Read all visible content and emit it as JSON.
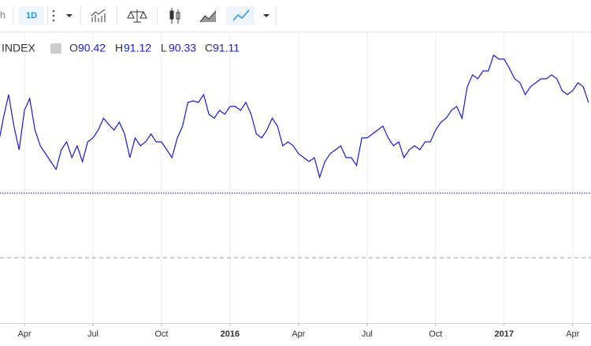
{
  "toolbar": {
    "interval_partial": "h",
    "interval": "1D"
  },
  "legend": {
    "symbol": "INDEX",
    "open_label": "O",
    "open": 90.42,
    "high_label": "H",
    "high": 91.12,
    "low_label": "L",
    "low": 90.33,
    "close_label": "C",
    "close": 91.11
  },
  "chart_data": {
    "type": "line",
    "color": "#1a1ad6",
    "categories": [
      null,
      null,
      null,
      null,
      null,
      "Apr",
      null,
      null,
      null,
      null,
      null,
      null,
      null,
      null,
      null,
      null,
      null,
      null,
      "Jul",
      null,
      null,
      null,
      null,
      null,
      null,
      null,
      null,
      null,
      null,
      null,
      null,
      "Oct",
      null,
      null,
      null,
      null,
      null,
      null,
      null,
      null,
      null,
      null,
      null,
      null,
      "2016",
      null,
      null,
      null,
      null,
      null,
      null,
      null,
      null,
      null,
      null,
      null,
      null,
      "Apr",
      null,
      null,
      null,
      null,
      null,
      null,
      null,
      null,
      null,
      null,
      null,
      null,
      "Jul",
      null,
      null,
      null,
      null,
      null,
      null,
      null,
      null,
      null,
      null,
      null,
      null,
      "Oct",
      null,
      null,
      null,
      null,
      null,
      null,
      null,
      null,
      null,
      null,
      null,
      null,
      "2017",
      null,
      null,
      null,
      null,
      null,
      null,
      null,
      null,
      null,
      null,
      null,
      null,
      "Apr",
      null,
      null,
      null
    ],
    "values": [
      87.81,
      89.91,
      91.71,
      89.31,
      87.51,
      90.51,
      91.41,
      89.01,
      87.81,
      87.21,
      86.61,
      86.01,
      87.51,
      88.11,
      86.91,
      87.81,
      86.61,
      88.11,
      88.41,
      89.01,
      89.91,
      89.43,
      89.01,
      89.61,
      88.71,
      86.91,
      88.41,
      87.81,
      88.11,
      88.71,
      88.11,
      88.11,
      87.51,
      86.91,
      88.41,
      89.31,
      91.11,
      91.23,
      91.11,
      91.71,
      90.21,
      89.91,
      90.51,
      90.21,
      90.81,
      90.81,
      90.51,
      91.11,
      90.21,
      88.71,
      88.41,
      89.01,
      89.91,
      89.31,
      87.81,
      88.11,
      87.81,
      87.21,
      86.91,
      86.61,
      86.91,
      85.41,
      86.61,
      87.21,
      87.51,
      87.81,
      86.91,
      86.91,
      86.31,
      88.41,
      88.41,
      88.71,
      89.01,
      89.31,
      88.41,
      87.81,
      88.11,
      86.91,
      87.51,
      87.81,
      87.51,
      88.11,
      88.11,
      89.01,
      89.61,
      89.91,
      90.51,
      90.81,
      89.91,
      92.31,
      93.21,
      92.91,
      93.51,
      93.51,
      94.71,
      94.41,
      94.41,
      93.71,
      92.91,
      92.61,
      91.71,
      92.31,
      92.61,
      92.91,
      92.91,
      93.21,
      92.91,
      92.01,
      91.71,
      92.01,
      92.61,
      92.31,
      91.11
    ],
    "ylim": [
      74.31,
      96.51
    ],
    "hlines": [
      {
        "value": 84.21,
        "style": "dotted",
        "color": "#1a1aa6"
      },
      {
        "value": 79.29,
        "style": "dashed",
        "color": "#9a9a9a"
      }
    ],
    "grid": true
  }
}
